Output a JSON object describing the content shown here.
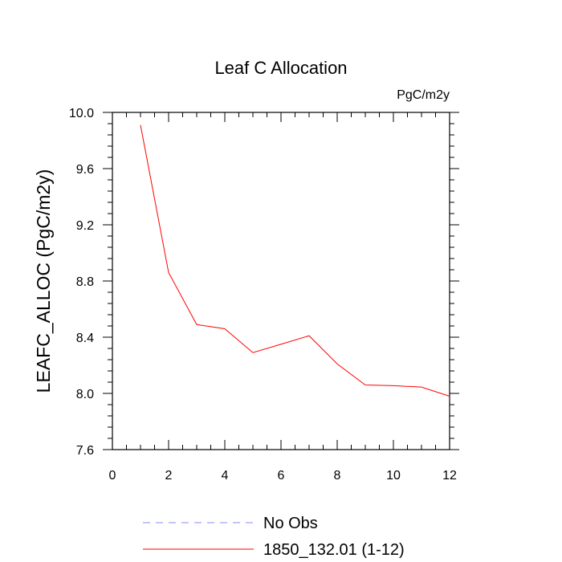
{
  "chart_data": {
    "type": "line",
    "title": "Leaf C Allocation",
    "units_label": "PgC/m2y",
    "xlabel": "",
    "ylabel": "LEAFC_ALLOC  (PgC/m2y)",
    "xlim": [
      0,
      12
    ],
    "ylim": [
      7.6,
      10.0
    ],
    "x_ticks": [
      0,
      2,
      4,
      6,
      8,
      10,
      12
    ],
    "x_tick_labels": [
      "0",
      "2",
      "4",
      "6",
      "8",
      "10",
      "12"
    ],
    "y_ticks": [
      7.6,
      8.0,
      8.4,
      8.8,
      9.2,
      9.6,
      10.0
    ],
    "y_tick_labels": [
      "7.6",
      "8.0",
      "8.4",
      "8.8",
      "9.2",
      "9.6",
      "10.0"
    ],
    "series": [
      {
        "name": "1850_132.01 (1-12)",
        "color": "#ff0000",
        "dash": "solid",
        "x": [
          1,
          2,
          3,
          4,
          5,
          6,
          7,
          8,
          9,
          10,
          11,
          12
        ],
        "values": [
          9.91,
          8.86,
          8.49,
          8.46,
          8.29,
          8.35,
          8.41,
          8.21,
          8.06,
          8.055,
          8.045,
          7.98
        ]
      }
    ],
    "legend": [
      {
        "label": "No Obs",
        "color": "#8a8aff",
        "dash": "dashed"
      },
      {
        "label": "1850_132.01 (1-12)",
        "color": "#ff0000",
        "dash": "solid"
      }
    ],
    "legend_placement": "bottom-center"
  }
}
